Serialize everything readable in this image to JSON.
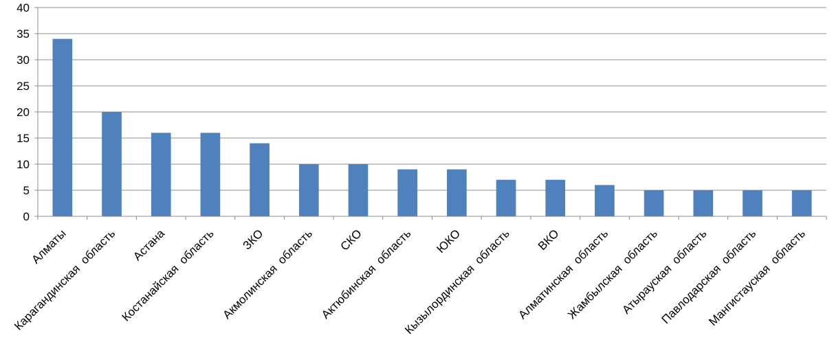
{
  "colors": {
    "bar": "#4f81bd",
    "grid": "#8c8c8c",
    "text": "#000000"
  },
  "chart_data": {
    "type": "bar",
    "title": "",
    "xlabel": "",
    "ylabel": "",
    "ylim": [
      0,
      40
    ],
    "yticks": [
      0,
      5,
      10,
      15,
      20,
      25,
      30,
      35,
      40
    ],
    "grid": true,
    "legend": "none",
    "categories": [
      "Алматы",
      "Карагандинская  область",
      "Астана",
      "Костанайская  область",
      "ЗКО",
      "Акмолинская  область",
      "СКО",
      "Актюбинская  область",
      "ЮКО",
      "Кызылординская  область",
      "ВКО",
      "Алматинская  область",
      "Жамбылская  область",
      "Атырауская  область",
      "Павлодарская  область",
      "Мангистауская  область"
    ],
    "series": [
      {
        "values": [
          34,
          20,
          16,
          16,
          14,
          10,
          10,
          9,
          9,
          7,
          7,
          6,
          5,
          5,
          5,
          5
        ]
      }
    ]
  }
}
